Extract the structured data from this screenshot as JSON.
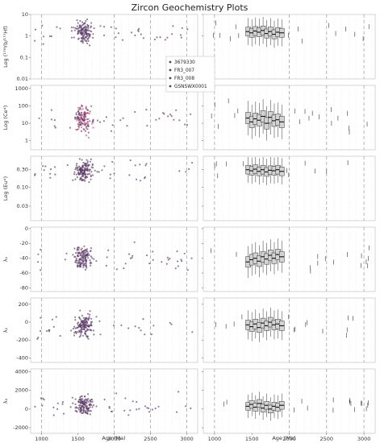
{
  "title": "Zircon Geochemistry Plots",
  "xlabel": "Age (Ma)",
  "colors": {
    "points": "#5a3b66",
    "points_highlight": "#d0457a",
    "box_fill": "#d3d3d3",
    "box_line": "#333333",
    "grid": "#dcdcdc",
    "dashed": "#999999"
  },
  "chart_data": {
    "type": "scatter",
    "title": "Zircon Geochemistry Plots",
    "xlabel": "Age (Ma)",
    "xlim": [
      850,
      3150
    ],
    "xticks": [
      1000,
      1500,
      2000,
      2500,
      3000
    ],
    "xtick_labels": [
      "1000",
      "1500",
      "2000",
      "2500",
      "3000"
    ],
    "age_lines": [
      1000,
      2000,
      2500,
      3000
    ],
    "legend": {
      "placement": "right of top-left panel",
      "entries": [
        "3679330",
        "FR3_007",
        "FR3_008",
        "GSNSWX0001"
      ]
    },
    "panels": [
      {
        "ylabel": "Log (¹⁷⁶Yb/¹⁷⁷Hf)",
        "scale": "log",
        "ylim": [
          0.01,
          10
        ],
        "yticks": [
          0.01,
          0.1,
          1,
          10
        ],
        "ytick_labels": [
          "0.01",
          "0.1",
          "1",
          "10"
        ],
        "center": 1.5,
        "spread": 0.35,
        "box_stats": [
          {
            "x": 1450,
            "median": 1.6
          },
          {
            "x": 1500,
            "median": 1.4
          },
          {
            "x": 1550,
            "median": 1.7
          },
          {
            "x": 1600,
            "median": 1.5
          },
          {
            "x": 1650,
            "median": 1.8
          },
          {
            "x": 1700,
            "median": 1.3
          },
          {
            "x": 1750,
            "median": 1.6
          },
          {
            "x": 1800,
            "median": 1.2
          },
          {
            "x": 1850,
            "median": 1.5
          },
          {
            "x": 1900,
            "median": 1.4
          }
        ]
      },
      {
        "ylabel": "Log (Ce*)",
        "scale": "log",
        "ylim": [
          0.3,
          1500
        ],
        "yticks": [
          1,
          10,
          100,
          1000
        ],
        "ytick_labels": [
          "1",
          "10",
          "100",
          "1000"
        ],
        "center": 15,
        "spread": 0.55,
        "box_stats": [
          {
            "x": 1450,
            "median": 20
          },
          {
            "x": 1500,
            "median": 12
          },
          {
            "x": 1550,
            "median": 18
          },
          {
            "x": 1600,
            "median": 15
          },
          {
            "x": 1650,
            "median": 25
          },
          {
            "x": 1700,
            "median": 10
          },
          {
            "x": 1750,
            "median": 22
          },
          {
            "x": 1800,
            "median": 14
          },
          {
            "x": 1850,
            "median": 16
          },
          {
            "x": 1900,
            "median": 12
          }
        ]
      },
      {
        "ylabel": "Log (Eu*)",
        "scale": "log",
        "ylim": [
          0.012,
          0.7
        ],
        "yticks": [
          0.03,
          0.1,
          0.3
        ],
        "ytick_labels": [
          "0.03",
          "0.10",
          "0.30"
        ],
        "center": 0.28,
        "spread": 0.2,
        "box_stats": [
          {
            "x": 1450,
            "median": 0.3
          },
          {
            "x": 1500,
            "median": 0.28
          },
          {
            "x": 1550,
            "median": 0.31
          },
          {
            "x": 1600,
            "median": 0.27
          },
          {
            "x": 1650,
            "median": 0.3
          },
          {
            "x": 1700,
            "median": 0.26
          },
          {
            "x": 1750,
            "median": 0.29
          },
          {
            "x": 1800,
            "median": 0.28
          },
          {
            "x": 1850,
            "median": 0.3
          },
          {
            "x": 1900,
            "median": 0.27
          }
        ]
      },
      {
        "ylabel": "λ₁",
        "scale": "linear",
        "ylim": [
          -85,
          2
        ],
        "yticks": [
          -80,
          -60,
          -40,
          -20,
          0
        ],
        "ytick_labels": [
          "-80",
          "-60",
          "-40",
          "-20",
          "0"
        ],
        "center": -40,
        "spread": 12,
        "box_stats": [
          {
            "x": 1450,
            "median": -45
          },
          {
            "x": 1500,
            "median": -42
          },
          {
            "x": 1550,
            "median": -40
          },
          {
            "x": 1600,
            "median": -44
          },
          {
            "x": 1650,
            "median": -38
          },
          {
            "x": 1700,
            "median": -41
          },
          {
            "x": 1750,
            "median": -36
          },
          {
            "x": 1800,
            "median": -40
          },
          {
            "x": 1850,
            "median": -35
          },
          {
            "x": 1900,
            "median": -38
          }
        ]
      },
      {
        "ylabel": "λ₂",
        "scale": "linear",
        "ylim": [
          -450,
          270
        ],
        "yticks": [
          -400,
          -200,
          0,
          200
        ],
        "ytick_labels": [
          "-400",
          "-200",
          "0",
          "200"
        ],
        "center": -40,
        "spread": 90,
        "box_stats": [
          {
            "x": 1450,
            "median": -30
          },
          {
            "x": 1500,
            "median": -50
          },
          {
            "x": 1550,
            "median": -20
          },
          {
            "x": 1600,
            "median": -60
          },
          {
            "x": 1650,
            "median": -10
          },
          {
            "x": 1700,
            "median": -40
          },
          {
            "x": 1750,
            "median": 0
          },
          {
            "x": 1800,
            "median": -30
          },
          {
            "x": 1850,
            "median": -20
          },
          {
            "x": 1900,
            "median": -40
          }
        ]
      },
      {
        "ylabel": "λ₃",
        "scale": "linear",
        "ylim": [
          -2600,
          4300
        ],
        "yticks": [
          -2000,
          0,
          2000,
          4000
        ],
        "ytick_labels": [
          "-2000",
          "0",
          "2000",
          "4000"
        ],
        "center": 400,
        "spread": 700,
        "box_stats": [
          {
            "x": 1450,
            "median": 300
          },
          {
            "x": 1500,
            "median": 500
          },
          {
            "x": 1550,
            "median": 200
          },
          {
            "x": 1600,
            "median": 600
          },
          {
            "x": 1650,
            "median": 100
          },
          {
            "x": 1700,
            "median": 400
          },
          {
            "x": 1750,
            "median": 0
          },
          {
            "x": 1800,
            "median": 300
          },
          {
            "x": 1850,
            "median": 200
          },
          {
            "x": 1900,
            "median": 400
          }
        ]
      }
    ]
  }
}
